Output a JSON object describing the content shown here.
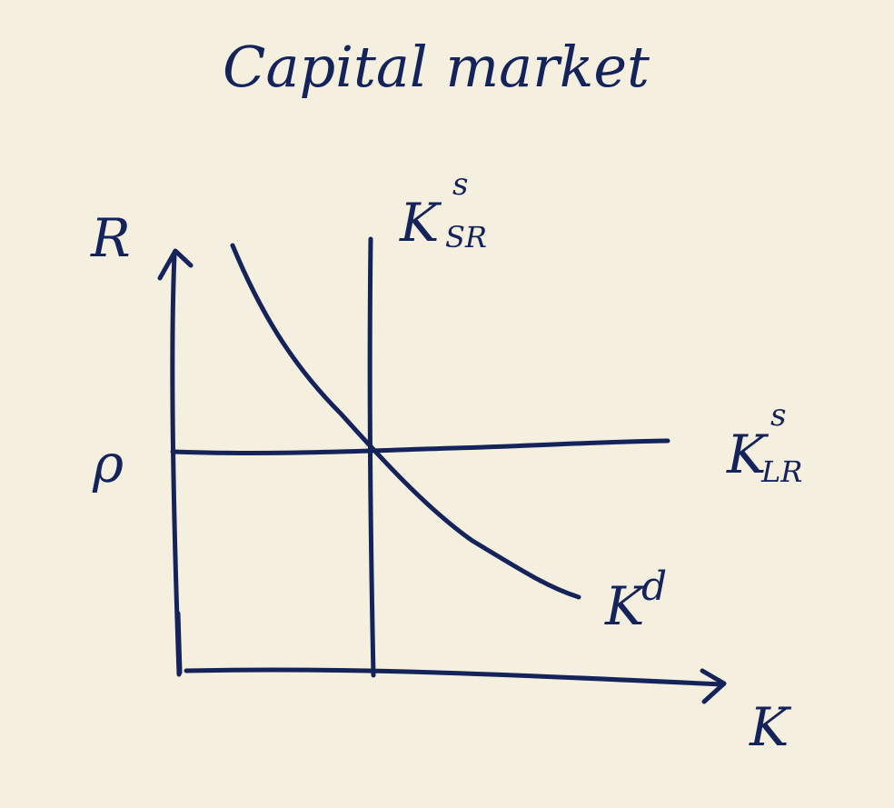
{
  "title": "Capital market",
  "axes": {
    "y_label": "R",
    "x_label": "K",
    "level_label": "ρ"
  },
  "curves": {
    "short_run_supply": {
      "base": "K",
      "sup": "s",
      "sub": "SR"
    },
    "long_run_supply": {
      "base": "K",
      "sup": "s",
      "sub": "LR"
    },
    "demand": {
      "base": "K",
      "sup": "d"
    }
  },
  "colors": {
    "ink": "#14235a",
    "paper": "#f5efe0"
  }
}
